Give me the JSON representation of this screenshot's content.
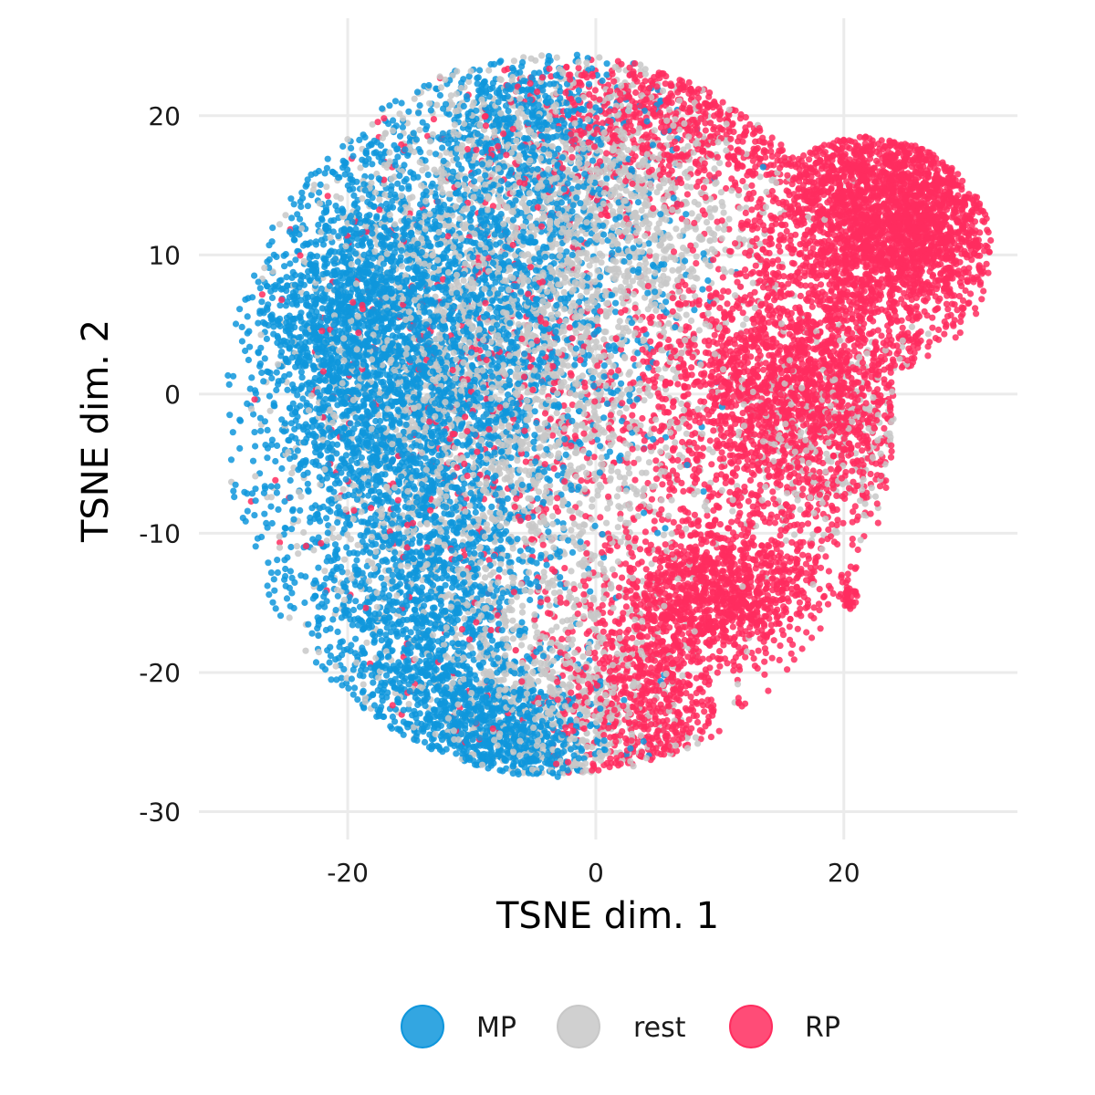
{
  "chart_data": {
    "type": "scatter",
    "title": "",
    "xlabel": "TSNE dim. 1",
    "ylabel": "TSNE dim. 2",
    "xlim": [
      -32,
      34
    ],
    "ylim": [
      -32,
      27
    ],
    "xticks": [
      -20,
      0,
      20
    ],
    "yticks": [
      -30,
      -20,
      -10,
      0,
      10,
      20
    ],
    "grid": true,
    "legend_position": "bottom",
    "series": [
      {
        "name": "MP",
        "color": "#0f96dc"
      },
      {
        "name": "rest",
        "color": "#c8c8c8"
      },
      {
        "name": "RP",
        "color": "#ff2d5f"
      }
    ],
    "clusters": {
      "MP": [
        {
          "cx": -15,
          "cy": 0,
          "sx": 6,
          "sy": 11,
          "n": 3200
        },
        {
          "cx": -20,
          "cy": 5,
          "sx": 4,
          "sy": 5,
          "n": 900
        },
        {
          "cx": -8,
          "cy": -25,
          "sx": 4,
          "sy": 2.5,
          "n": 700
        },
        {
          "cx": -5,
          "cy": 10,
          "sx": 6,
          "sy": 8,
          "n": 1000
        },
        {
          "cx": -6,
          "cy": 20,
          "sx": 3,
          "sy": 2.5,
          "n": 300
        },
        {
          "cx": -14,
          "cy": -18,
          "sx": 4,
          "sy": 4,
          "n": 700
        }
      ],
      "rest": [
        {
          "cx": -8,
          "cy": 2,
          "sx": 8,
          "sy": 12,
          "n": 3000
        },
        {
          "cx": 2,
          "cy": 14,
          "sx": 6,
          "sy": 5,
          "n": 900
        },
        {
          "cx": -3,
          "cy": -22,
          "sx": 5,
          "sy": 4,
          "n": 600
        },
        {
          "cx": 20,
          "cy": -3,
          "sx": 5,
          "sy": 4,
          "n": 300
        }
      ],
      "RP": [
        {
          "cx": 24,
          "cy": 13,
          "sx": 5,
          "sy": 4,
          "n": 2500
        },
        {
          "cx": 16,
          "cy": 0,
          "sx": 6,
          "sy": 5,
          "n": 2200
        },
        {
          "cx": 10,
          "cy": -14,
          "sx": 4,
          "sy": 2.5,
          "n": 1100
        },
        {
          "cx": 4,
          "cy": -22,
          "sx": 3.5,
          "sy": 4,
          "n": 700
        },
        {
          "cx": 8,
          "cy": 20,
          "sx": 7,
          "sy": 3,
          "n": 700
        },
        {
          "cx": -6,
          "cy": 0,
          "sx": 8,
          "sy": 12,
          "n": 700
        },
        {
          "cx": 20.5,
          "cy": -14.5,
          "sx": 0.4,
          "sy": 0.9,
          "n": 40
        }
      ]
    }
  }
}
